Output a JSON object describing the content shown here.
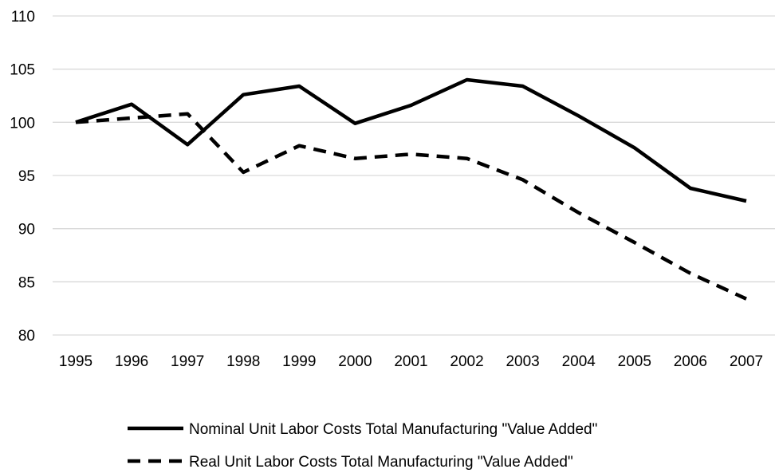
{
  "chart_data": {
    "type": "line",
    "title": "",
    "xlabel": "",
    "ylabel": "",
    "categories": [
      "1995",
      "1996",
      "1997",
      "1998",
      "1999",
      "2000",
      "2001",
      "2002",
      "2003",
      "2004",
      "2005",
      "2006",
      "2007"
    ],
    "ylim": [
      80,
      110
    ],
    "yticks": [
      80,
      85,
      90,
      95,
      100,
      105,
      110
    ],
    "grid": "horizontal",
    "legend_position": "bottom",
    "series": [
      {
        "name": "Nominal Unit Labor Costs Total Manufacturing \"Value Added\"",
        "style": "solid",
        "color": "#000000",
        "values": [
          100.0,
          101.7,
          97.9,
          102.6,
          103.4,
          99.9,
          101.6,
          104.0,
          103.4,
          100.6,
          97.6,
          93.8,
          92.6
        ]
      },
      {
        "name": "Real Unit Labor Costs Total Manufacturing \"Value Added\"",
        "style": "dashed",
        "color": "#000000",
        "values": [
          100.0,
          100.4,
          100.8,
          95.3,
          97.8,
          96.6,
          97.0,
          96.6,
          94.6,
          91.5,
          88.7,
          85.8,
          83.4
        ]
      }
    ]
  },
  "colors": {
    "gridline": "#d9d9d9",
    "series": "#000000",
    "background": "#ffffff"
  }
}
